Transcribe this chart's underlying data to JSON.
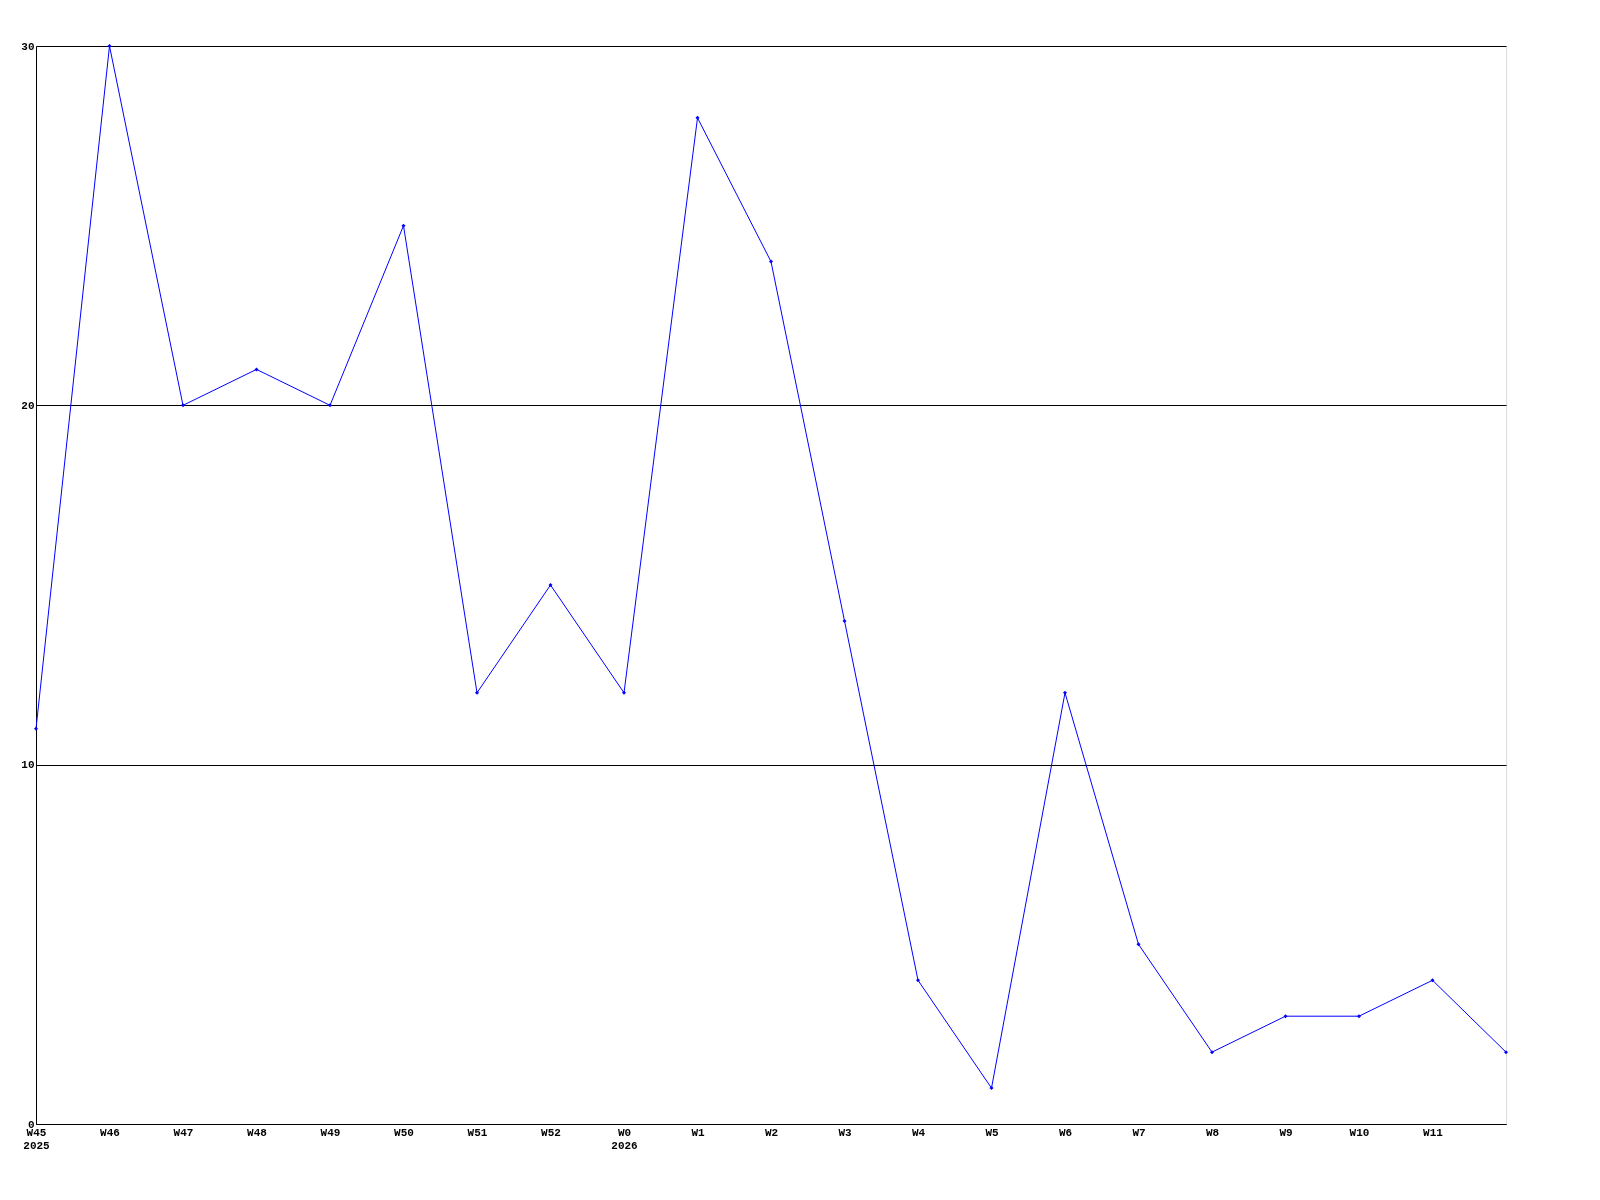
{
  "chart_data": {
    "type": "line",
    "categories": [
      "W45\n2025",
      "W46",
      "W47",
      "W48",
      "W49",
      "W50",
      "W51",
      "W52",
      "W0\n2026",
      "W1",
      "W2",
      "W3",
      "W4",
      "W5",
      "W6",
      "W7",
      "W8",
      "W9",
      "W10",
      "W11",
      null
    ],
    "series": [
      {
        "color": "#0000ff",
        "values": [
          11,
          30,
          20,
          21,
          20,
          25,
          12,
          15,
          12,
          28,
          24,
          14,
          4,
          1,
          12,
          5,
          2,
          3,
          3,
          4,
          2
        ]
      }
    ],
    "ylim": [
      0,
      30
    ],
    "yticks": [
      0,
      10,
      20,
      30
    ],
    "grid": "y",
    "marker": "diamond",
    "line_style": "solid",
    "legend": false
  }
}
